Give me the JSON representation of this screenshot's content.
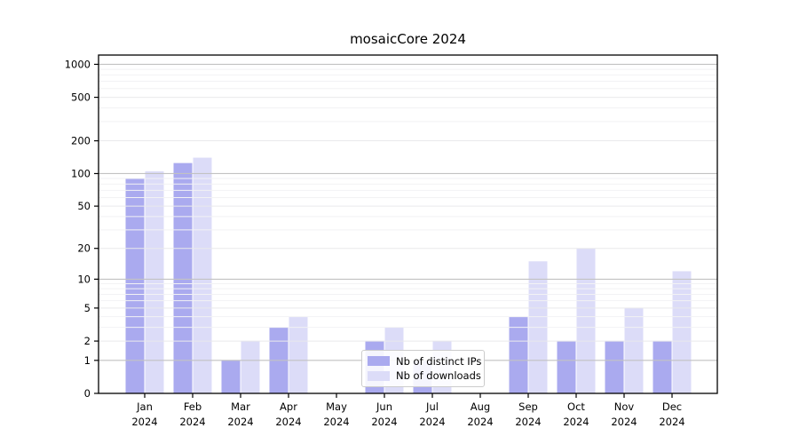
{
  "title": "mosaicCore 2024",
  "colors": {
    "ips_bar": "#aaaaef",
    "downloads_bar": "#dcdcf8",
    "grid_major": "#c2c2c2",
    "grid_minor": "#e9e9ec",
    "axis": "#000000",
    "legend_border": "#cccccc"
  },
  "legend": {
    "items": [
      {
        "label": "Nb of distinct IPs",
        "series": "ips"
      },
      {
        "label": "Nb of downloads",
        "series": "downloads"
      }
    ]
  },
  "chart_data": {
    "type": "bar",
    "title": "mosaicCore 2024",
    "xlabel": "",
    "ylabel": "",
    "yscale": "log1p",
    "grid": "on",
    "legend_position": "lower center",
    "ylim": [
      0,
      1200
    ],
    "yticks": [
      0,
      1,
      2,
      5,
      10,
      20,
      50,
      100,
      200,
      500,
      1000
    ],
    "ytick_major": [
      1,
      10,
      100,
      1000
    ],
    "ytick_faint": [
      3,
      4,
      6,
      7,
      8,
      9,
      30,
      40,
      60,
      70,
      80,
      90,
      300,
      400,
      600,
      700,
      800,
      900
    ],
    "categories": [
      {
        "month": "Jan",
        "year": "2024"
      },
      {
        "month": "Feb",
        "year": "2024"
      },
      {
        "month": "Mar",
        "year": "2024"
      },
      {
        "month": "Apr",
        "year": "2024"
      },
      {
        "month": "May",
        "year": "2024"
      },
      {
        "month": "Jun",
        "year": "2024"
      },
      {
        "month": "Jul",
        "year": "2024"
      },
      {
        "month": "Aug",
        "year": "2024"
      },
      {
        "month": "Sep",
        "year": "2024"
      },
      {
        "month": "Oct",
        "year": "2024"
      },
      {
        "month": "Nov",
        "year": "2024"
      },
      {
        "month": "Dec",
        "year": "2024"
      }
    ],
    "series": [
      {
        "name": "Nb of distinct IPs",
        "color_key": "ips_bar",
        "values": [
          90,
          125,
          1,
          3,
          0,
          2,
          1,
          0,
          4,
          2,
          2,
          2
        ]
      },
      {
        "name": "Nb of downloads",
        "color_key": "downloads_bar",
        "values": [
          105,
          140,
          2,
          4,
          0,
          3,
          2,
          0,
          15,
          20,
          5,
          12
        ]
      }
    ]
  }
}
